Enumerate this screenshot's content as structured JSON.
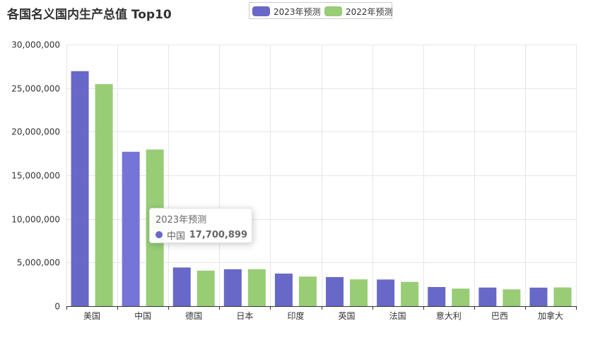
{
  "title": "各国名义国内生产总值 Top10",
  "colors": {
    "series_2023": "#6868c8",
    "series_2023_hover": "#7575d8",
    "series_2022": "#98cd76"
  },
  "legend": [
    {
      "name": "2023年预测",
      "color": "#6868c8"
    },
    {
      "name": "2022年预测",
      "color": "#98cd76"
    }
  ],
  "chart_data": {
    "type": "bar",
    "title": "各国名义国内生产总值 Top10",
    "categories": [
      "美国",
      "中国",
      "德国",
      "日本",
      "印度",
      "英国",
      "法国",
      "意大利",
      "巴西",
      "加拿大"
    ],
    "series": [
      {
        "name": "2023年预测",
        "values": [
          26950000,
          17700899,
          4430000,
          4230000,
          3730000,
          3330000,
          3050000,
          2190000,
          2130000,
          2120000
        ]
      },
      {
        "name": "2022年预测",
        "values": [
          25460000,
          17960000,
          4070000,
          4230000,
          3390000,
          3070000,
          2780000,
          2010000,
          1920000,
          2140000
        ]
      }
    ],
    "ylim": [
      0,
      30000000
    ],
    "yticks": [
      0,
      5000000,
      10000000,
      15000000,
      20000000,
      25000000,
      30000000
    ],
    "ytick_labels": [
      "0",
      "5,000,000",
      "10,000,000",
      "15,000,000",
      "20,000,000",
      "25,000,000",
      "30,000,000"
    ],
    "grid": true,
    "legend_position": "top-center"
  },
  "tooltip": {
    "title": "2023年预测",
    "name": "中国",
    "value": "17,700,899",
    "color": "#6868c8"
  }
}
